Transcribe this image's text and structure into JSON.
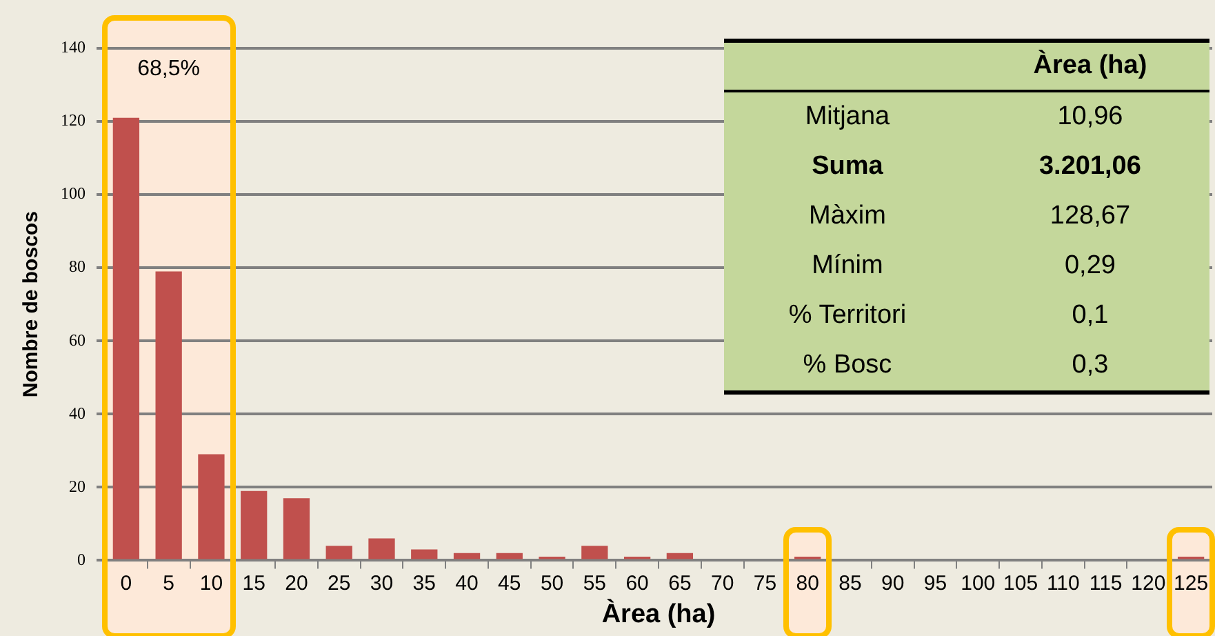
{
  "chart_data": {
    "type": "bar",
    "xlabel": "Àrea (ha)",
    "ylabel": "Nombre de boscos",
    "categories": [
      "0",
      "5",
      "10",
      "15",
      "20",
      "25",
      "30",
      "35",
      "40",
      "45",
      "50",
      "55",
      "60",
      "65",
      "70",
      "75",
      "80",
      "85",
      "90",
      "95",
      "100",
      "105",
      "110",
      "115",
      "120",
      "125"
    ],
    "values": [
      121,
      79,
      29,
      19,
      17,
      4,
      6,
      3,
      2,
      2,
      1,
      4,
      1,
      2,
      0,
      0,
      1,
      0,
      0,
      0,
      0,
      0,
      0,
      0,
      0,
      1
    ],
    "color": "#c0504d",
    "ylim": [
      0,
      140
    ],
    "yticks": [
      0,
      20,
      40,
      60,
      80,
      100,
      120,
      140
    ],
    "grid": "y",
    "legend": false,
    "bands": [
      {
        "axis": "x",
        "from": "0",
        "to": "10",
        "label": "68,5%",
        "color": "#fde9d9"
      },
      {
        "axis": "x",
        "from": "80",
        "to": "80",
        "color": "#fde9d9"
      },
      {
        "axis": "x",
        "from": "125",
        "to": "125",
        "color": "#fde9d9"
      }
    ],
    "annotations": [
      "Àrea (ha)",
      "Mitjana",
      "10,96",
      "Suma",
      "3.201,06",
      "Màxim",
      "128,67",
      "Mínim",
      "0,29",
      "% Territori",
      "0,1",
      "% Bosc",
      "0,3"
    ]
  }
}
